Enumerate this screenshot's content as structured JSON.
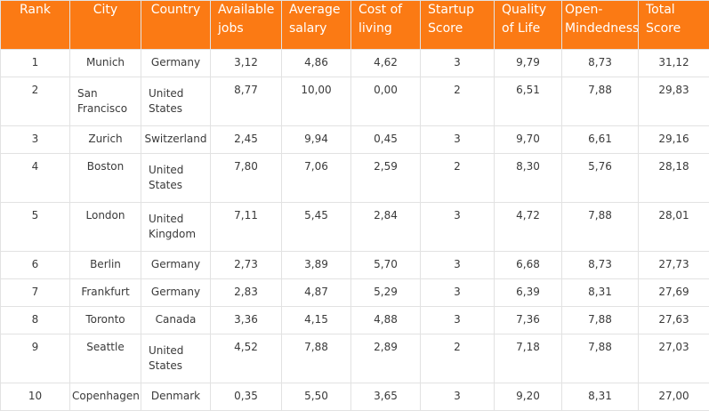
{
  "table": {
    "headers": [
      "Rank",
      "City",
      "Country",
      "Available jobs",
      "Average salary",
      "Cost of living",
      "Startup Score",
      "Quality of Life",
      "Open-Mindedness",
      "Total Score"
    ],
    "rows": [
      [
        "1",
        "Munich",
        "Germany",
        "3,12",
        "4,86",
        "4,62",
        "3",
        "9,79",
        "8,73",
        "31,12"
      ],
      [
        "2",
        "San Francisco",
        "United States",
        "8,77",
        "10,00",
        "0,00",
        "2",
        "6,51",
        "7,88",
        "29,83"
      ],
      [
        "3",
        "Zurich",
        "Switzerland",
        "2,45",
        "9,94",
        "0,45",
        "3",
        "9,70",
        "6,61",
        "29,16"
      ],
      [
        "4",
        "Boston",
        "United States",
        "7,80",
        "7,06",
        "2,59",
        "2",
        "8,30",
        "5,76",
        "28,18"
      ],
      [
        "5",
        "London",
        "United Kingdom",
        "7,11",
        "5,45",
        "2,84",
        "3",
        "4,72",
        "7,88",
        "28,01"
      ],
      [
        "6",
        "Berlin",
        "Germany",
        "2,73",
        "3,89",
        "5,70",
        "3",
        "6,68",
        "8,73",
        "27,73"
      ],
      [
        "7",
        "Frankfurt",
        "Germany",
        "2,83",
        "4,87",
        "5,29",
        "3",
        "6,39",
        "8,31",
        "27,69"
      ],
      [
        "8",
        "Toronto",
        "Canada",
        "3,36",
        "4,15",
        "4,88",
        "3",
        "7,36",
        "7,88",
        "27,63"
      ],
      [
        "9",
        "Seattle",
        "United States",
        "4,52",
        "7,88",
        "2,89",
        "2",
        "7,18",
        "7,88",
        "27,03"
      ],
      [
        "10",
        "Copenhagen",
        "Denmark",
        "0,35",
        "5,50",
        "3,65",
        "3",
        "9,20",
        "8,31",
        "27,00"
      ]
    ]
  },
  "colors": {
    "header_bg": "#fb7a14",
    "header_text": "#ffffff",
    "border": "#e2e2e2",
    "body_text": "#3a3a3a"
  }
}
